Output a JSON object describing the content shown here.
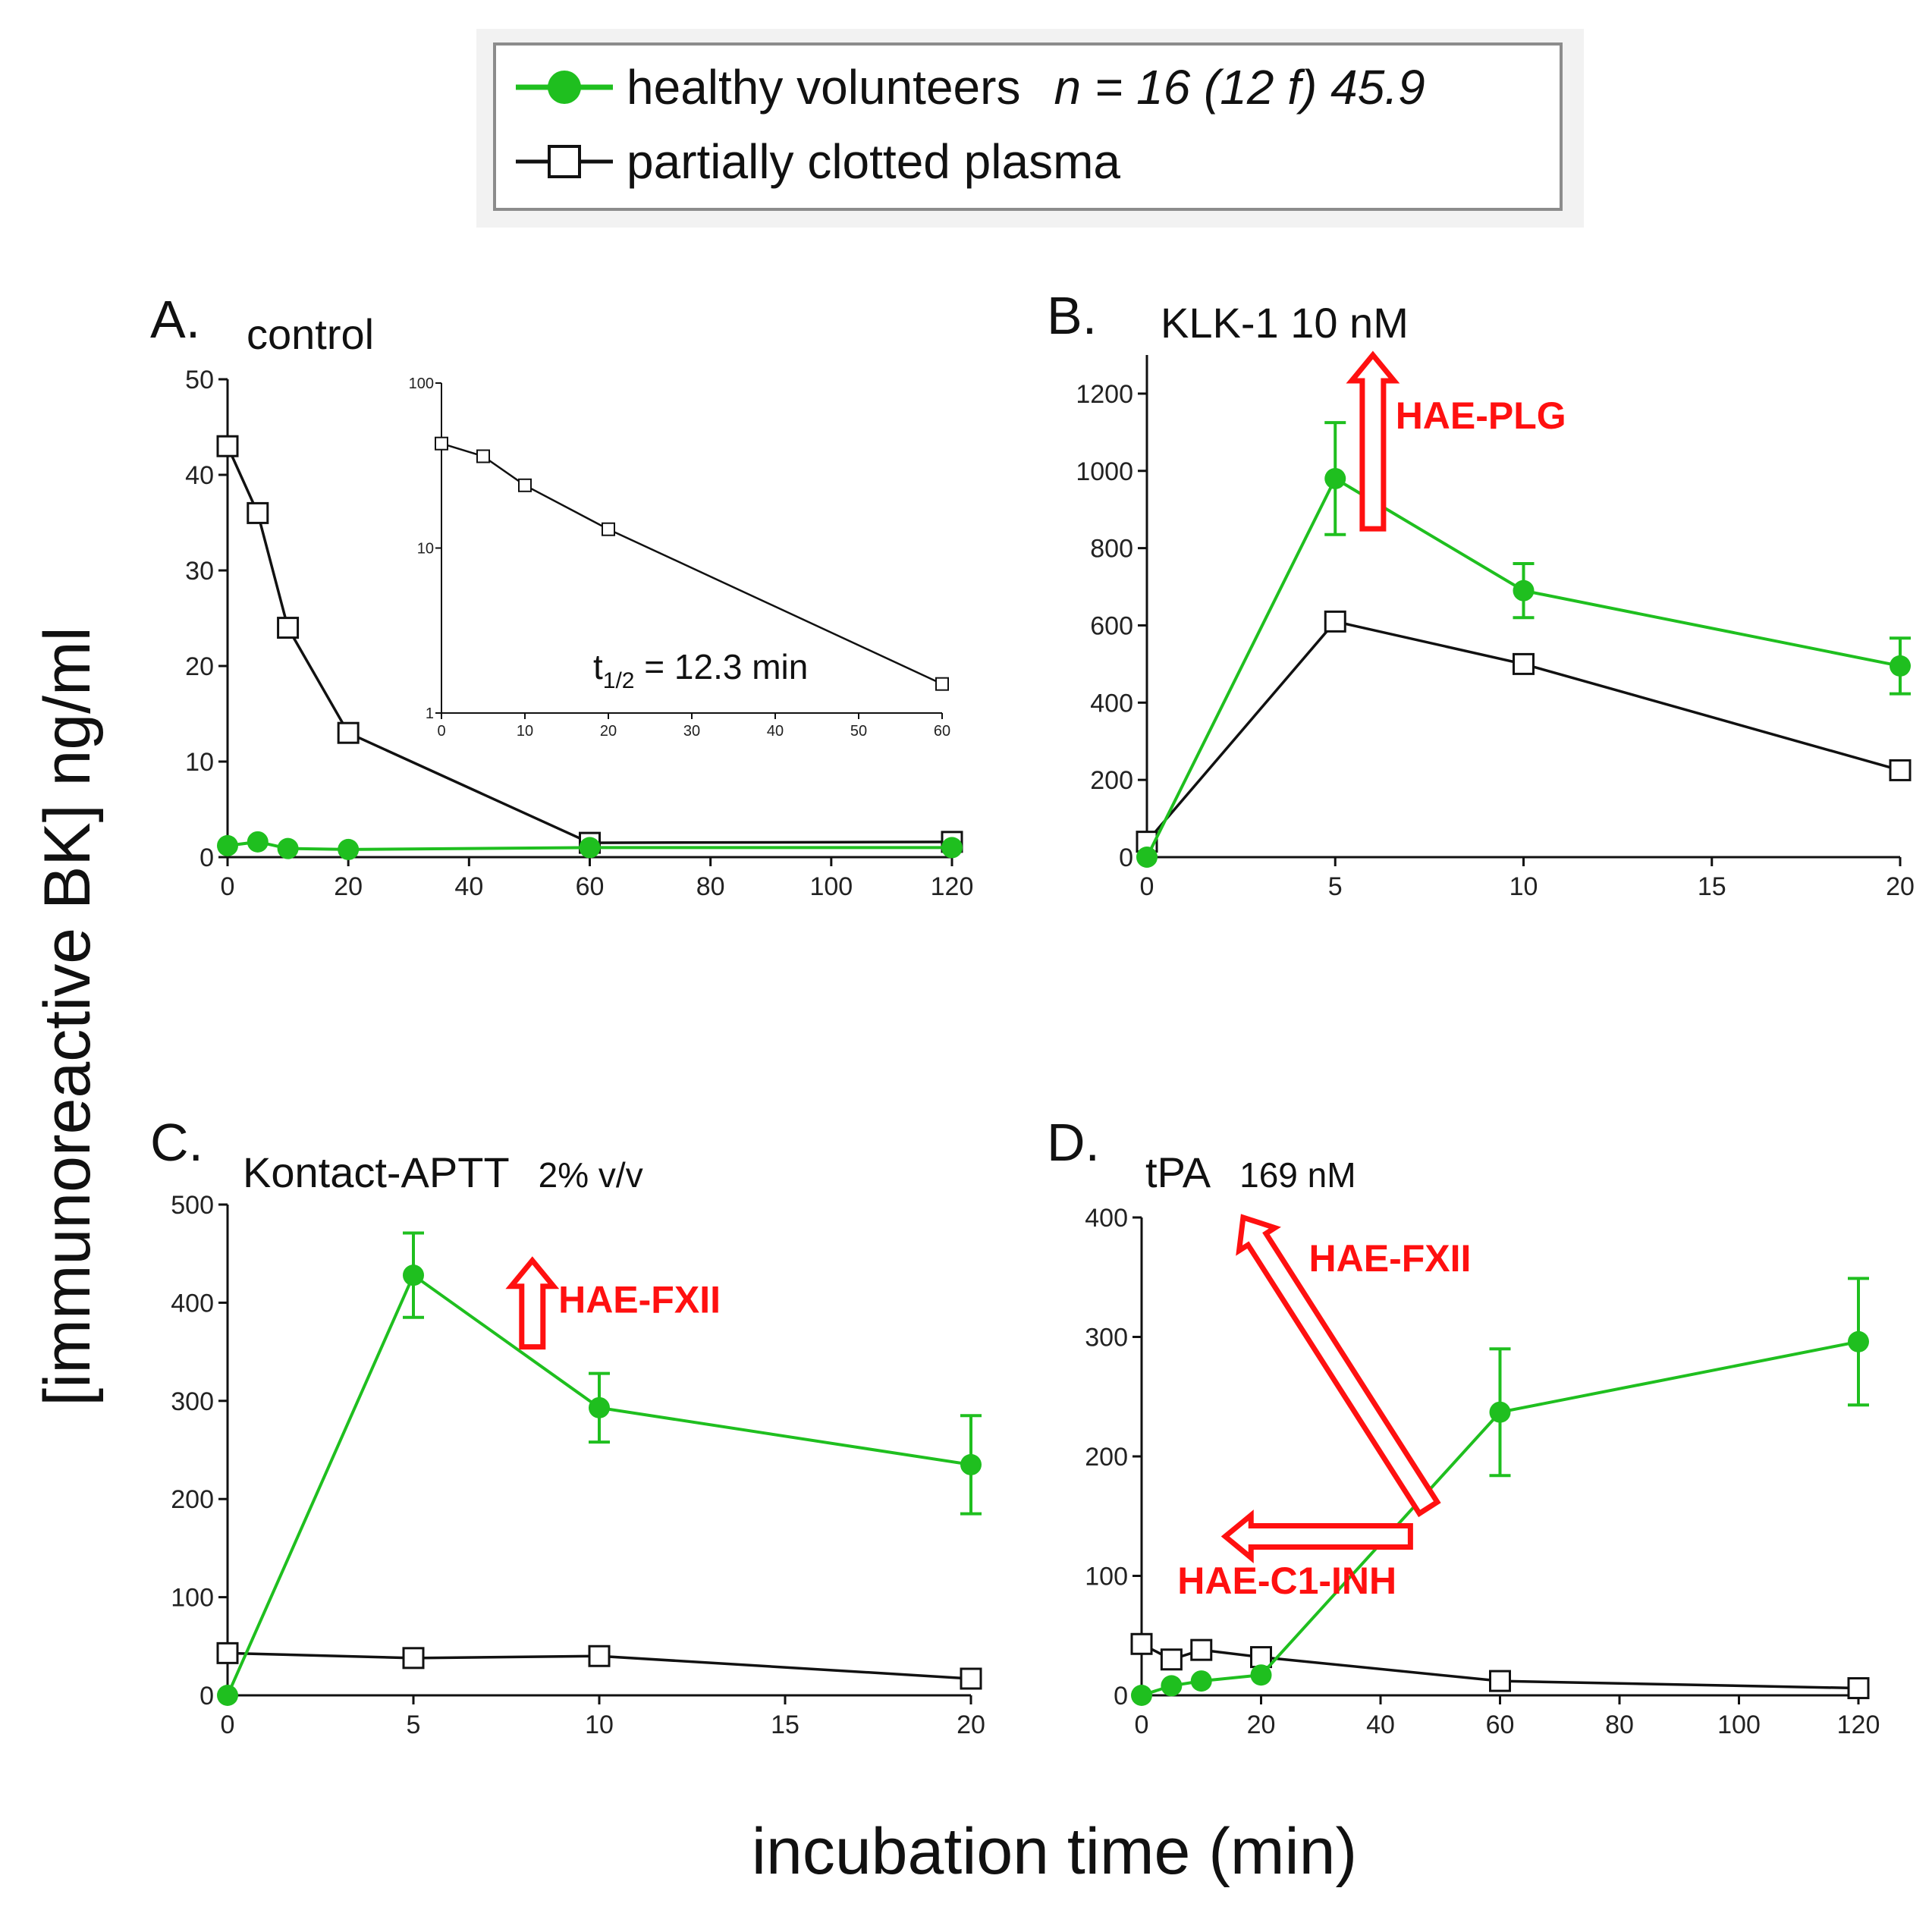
{
  "legend": {
    "healthy_label": "healthy volunteers",
    "healthy_note": "n = 16 (12 f) 45.9",
    "clotted_label": "partially clotted plasma"
  },
  "colors": {
    "healthy": "#1fbf1f",
    "clotted": "#111111",
    "arrow": "#ff1010"
  },
  "y_axis_title": "[immunoreactive BK] ng/ml",
  "x_axis_title": "incubation time (min)",
  "chart_data": [
    {
      "id": "A",
      "type": "line",
      "letter": "A.",
      "title": "control",
      "title_small": "",
      "xlim": [
        0,
        120
      ],
      "ylim": [
        0,
        50
      ],
      "xticks": [
        0,
        20,
        40,
        60,
        80,
        100,
        120
      ],
      "yticks": [
        0,
        10,
        20,
        30,
        40,
        50
      ],
      "series": [
        {
          "name": "healthy volunteers",
          "x": [
            0,
            5,
            10,
            20,
            60,
            120
          ],
          "y": [
            1.2,
            1.6,
            0.9,
            0.8,
            1.0,
            1.0
          ],
          "err": [
            0,
            0,
            0,
            0,
            0,
            0
          ]
        },
        {
          "name": "partially clotted plasma",
          "x": [
            0,
            5,
            10,
            20,
            60,
            120
          ],
          "y": [
            43,
            36,
            24,
            13,
            1.5,
            1.6
          ],
          "err": [
            0,
            0,
            0,
            0,
            0,
            0
          ]
        }
      ],
      "annotations": [],
      "inset": {
        "type": "line",
        "yscale": "log",
        "xlim": [
          0,
          60
        ],
        "ylim": [
          1,
          100
        ],
        "xticks": [
          0,
          10,
          20,
          30,
          40,
          50,
          60
        ],
        "yticks": [
          1,
          10,
          100
        ],
        "x": [
          0,
          5,
          10,
          20,
          60
        ],
        "y": [
          43,
          36,
          24,
          13,
          1.5
        ],
        "label_main": "t",
        "label_sub": "1/2",
        "label_rest": " = 12.3 min"
      }
    },
    {
      "id": "B",
      "type": "line",
      "letter": "B.",
      "title": "KLK-1  10 nM",
      "title_small": "",
      "xlim": [
        0,
        20
      ],
      "ylim": [
        0,
        1300
      ],
      "xticks": [
        0,
        5,
        10,
        15,
        20
      ],
      "yticks": [
        0,
        200,
        400,
        600,
        800,
        1000,
        1200
      ],
      "series": [
        {
          "name": "healthy volunteers",
          "x": [
            0,
            5,
            10,
            20
          ],
          "y": [
            0,
            980,
            690,
            495
          ],
          "err": [
            0,
            145,
            70,
            72
          ]
        },
        {
          "name": "partially clotted plasma",
          "x": [
            0,
            5,
            10,
            20
          ],
          "y": [
            40,
            610,
            500,
            225
          ],
          "err": [
            0,
            0,
            0,
            0
          ]
        }
      ],
      "annotations": [
        {
          "label": "HAE-PLG",
          "dir": "up",
          "x0": 6.0,
          "y0": 850,
          "x1": 6.0,
          "y1": 1300,
          "lx": 6.6,
          "ly": 1110
        }
      ]
    },
    {
      "id": "C",
      "type": "line",
      "letter": "C.",
      "title": "Kontact-APTT",
      "title_small": "2% v/v",
      "xlim": [
        0,
        20
      ],
      "ylim": [
        0,
        500
      ],
      "xticks": [
        0,
        5,
        10,
        15,
        20
      ],
      "yticks": [
        0,
        100,
        200,
        300,
        400,
        500
      ],
      "series": [
        {
          "name": "healthy volunteers",
          "x": [
            0,
            5,
            10,
            20
          ],
          "y": [
            0,
            428,
            293,
            235
          ],
          "err": [
            0,
            43,
            35,
            50
          ]
        },
        {
          "name": "partially clotted plasma",
          "x": [
            0,
            5,
            10,
            20
          ],
          "y": [
            43,
            38,
            40,
            17
          ],
          "err": [
            0,
            0,
            0,
            0
          ]
        }
      ],
      "annotations": [
        {
          "label": "HAE-FXII",
          "dir": "up",
          "x0": 8.2,
          "y0": 355,
          "x1": 8.2,
          "y1": 443,
          "lx": 8.9,
          "ly": 390
        }
      ]
    },
    {
      "id": "D",
      "type": "line",
      "letter": "D.",
      "title": "tPA",
      "title_small": "169 nM",
      "xlim": [
        0,
        120
      ],
      "ylim": [
        0,
        400
      ],
      "xticks": [
        0,
        20,
        40,
        60,
        80,
        100,
        120
      ],
      "yticks": [
        0,
        100,
        200,
        300,
        400
      ],
      "series": [
        {
          "name": "healthy volunteers",
          "x": [
            0,
            5,
            10,
            20,
            60,
            120
          ],
          "y": [
            0,
            8,
            12,
            17,
            237,
            296
          ],
          "err": [
            0,
            0,
            0,
            0,
            53,
            53
          ]
        },
        {
          "name": "partially clotted plasma",
          "x": [
            0,
            5,
            10,
            20,
            60,
            120
          ],
          "y": [
            43,
            30,
            38,
            32,
            12,
            6
          ],
          "err": [
            0,
            0,
            0,
            0,
            0,
            0
          ]
        }
      ],
      "annotations": [
        {
          "label": "HAE-FXII",
          "dir": "diag",
          "x0": 48,
          "y0": 157,
          "x1": 17,
          "y1": 400,
          "lx": 28,
          "ly": 355
        },
        {
          "label": "HAE-C1-INH",
          "dir": "left",
          "x0": 45,
          "y0": 133,
          "x1": 14,
          "y1": 133,
          "lx": 6,
          "ly": 85
        }
      ]
    }
  ]
}
